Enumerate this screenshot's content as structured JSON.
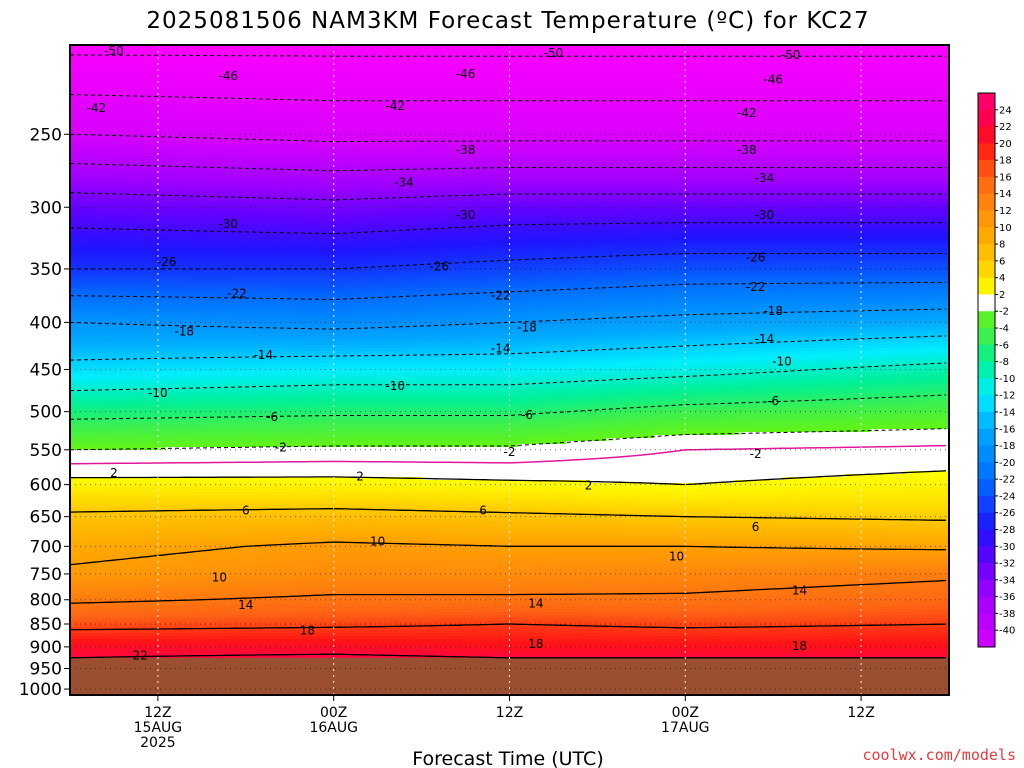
{
  "chart_data": {
    "type": "heatmap",
    "title": "2025081506 NAM3KM Forecast Temperature (ºC) for KC27",
    "xlabel": "Forecast Time (UTC)",
    "ylabel": "",
    "y_axis": {
      "scale": "log",
      "inverted": true,
      "range": [
        1015,
        200
      ],
      "ticks": [
        "250",
        "300",
        "350",
        "400",
        "450",
        "500",
        "550",
        "600",
        "650",
        "700",
        "750",
        "800",
        "850",
        "900",
        "950",
        "1000"
      ]
    },
    "x_axis": {
      "range": [
        "2025-08-15 06Z",
        "2025-08-17 18Z"
      ],
      "ticks": [
        {
          "lines": [
            "12Z",
            "15AUG",
            "2025"
          ]
        },
        {
          "lines": [
            "00Z",
            "16AUG"
          ]
        },
        {
          "lines": [
            "12Z"
          ]
        },
        {
          "lines": [
            "00Z",
            "17AUG"
          ]
        },
        {
          "lines": [
            "12Z"
          ]
        }
      ]
    },
    "surface_pressure_hpa": 925,
    "colorbar": {
      "labels": [
        "24",
        "22",
        "20",
        "18",
        "16",
        "14",
        "12",
        "10",
        "8",
        "6",
        "4",
        "2",
        "-2",
        "-4",
        "-6",
        "-8",
        "-10",
        "-12",
        "-14",
        "-16",
        "-18",
        "-20",
        "-22",
        "-24",
        "-26",
        "-28",
        "-30",
        "-32",
        "-34",
        "-36",
        "-38",
        "-40"
      ]
    },
    "profiles": [
      {
        "time": "2025-08-15 06Z",
        "levels": [
          {
            "p": 200,
            "t": -51
          },
          {
            "p": 250,
            "t": -42
          },
          {
            "p": 300,
            "t": -32
          },
          {
            "p": 350,
            "t": -26
          },
          {
            "p": 400,
            "t": -18
          },
          {
            "p": 450,
            "t": -13
          },
          {
            "p": 500,
            "t": -7
          },
          {
            "p": 550,
            "t": -2
          },
          {
            "p": 600,
            "t": 3
          },
          {
            "p": 650,
            "t": 6.5
          },
          {
            "p": 700,
            "t": 9
          },
          {
            "p": 750,
            "t": 10.5
          },
          {
            "p": 800,
            "t": 13.5
          },
          {
            "p": 850,
            "t": 17
          },
          {
            "p": 900,
            "t": 21
          },
          {
            "p": 925,
            "t": 22
          }
        ]
      },
      {
        "time": "2025-08-16 00Z",
        "levels": [
          {
            "p": 200,
            "t": -51
          },
          {
            "p": 250,
            "t": -43
          },
          {
            "p": 300,
            "t": -33
          },
          {
            "p": 350,
            "t": -26
          },
          {
            "p": 400,
            "t": -19
          },
          {
            "p": 450,
            "t": -12
          },
          {
            "p": 500,
            "t": -6.5
          },
          {
            "p": 550,
            "t": -1.5
          },
          {
            "p": 600,
            "t": 3
          },
          {
            "p": 650,
            "t": 7
          },
          {
            "p": 700,
            "t": 10.5
          },
          {
            "p": 750,
            "t": 12
          },
          {
            "p": 800,
            "t": 14.5
          },
          {
            "p": 850,
            "t": 17.5
          },
          {
            "p": 900,
            "t": 21
          },
          {
            "p": 925,
            "t": 22.5
          }
        ]
      },
      {
        "time": "2025-08-16 12Z",
        "levels": [
          {
            "p": 200,
            "t": -51
          },
          {
            "p": 250,
            "t": -43
          },
          {
            "p": 300,
            "t": -32
          },
          {
            "p": 350,
            "t": -25
          },
          {
            "p": 400,
            "t": -18
          },
          {
            "p": 450,
            "t": -12
          },
          {
            "p": 500,
            "t": -6.5
          },
          {
            "p": 550,
            "t": -1.5
          },
          {
            "p": 600,
            "t": 2.5
          },
          {
            "p": 650,
            "t": 6.5
          },
          {
            "p": 700,
            "t": 10
          },
          {
            "p": 750,
            "t": 12
          },
          {
            "p": 800,
            "t": 14.5
          },
          {
            "p": 850,
            "t": 18
          },
          {
            "p": 900,
            "t": 20.5
          },
          {
            "p": 925,
            "t": 22
          }
        ]
      },
      {
        "time": "2025-08-17 00Z",
        "levels": [
          {
            "p": 200,
            "t": -51
          },
          {
            "p": 250,
            "t": -43
          },
          {
            "p": 300,
            "t": -32
          },
          {
            "p": 350,
            "t": -24
          },
          {
            "p": 400,
            "t": -17
          },
          {
            "p": 450,
            "t": -11
          },
          {
            "p": 500,
            "t": -5
          },
          {
            "p": 550,
            "t": 0
          },
          {
            "p": 600,
            "t": 2
          },
          {
            "p": 650,
            "t": 6
          },
          {
            "p": 700,
            "t": 10
          },
          {
            "p": 750,
            "t": 12.5
          },
          {
            "p": 800,
            "t": 14.5
          },
          {
            "p": 850,
            "t": 17.5
          },
          {
            "p": 900,
            "t": 20.5
          },
          {
            "p": 925,
            "t": 22
          }
        ]
      },
      {
        "time": "2025-08-17 18Z",
        "levels": [
          {
            "p": 200,
            "t": -51
          },
          {
            "p": 250,
            "t": -43
          },
          {
            "p": 300,
            "t": -32
          },
          {
            "p": 350,
            "t": -24
          },
          {
            "p": 400,
            "t": -16
          },
          {
            "p": 450,
            "t": -9
          },
          {
            "p": 500,
            "t": -4
          },
          {
            "p": 550,
            "t": 0.5
          },
          {
            "p": 600,
            "t": 3
          },
          {
            "p": 650,
            "t": 5.5
          },
          {
            "p": 700,
            "t": 9.5
          },
          {
            "p": 750,
            "t": 13.5
          },
          {
            "p": 800,
            "t": 15.5
          },
          {
            "p": 850,
            "t": 18
          },
          {
            "p": 900,
            "t": 20.5
          },
          {
            "p": 925,
            "t": 22
          }
        ]
      }
    ],
    "contour_labels": [
      {
        "label": "-50",
        "t": 0.05,
        "p": 203
      },
      {
        "label": "-50",
        "t": 0.55,
        "p": 204
      },
      {
        "label": "-50",
        "t": 0.82,
        "p": 205
      },
      {
        "label": "-46",
        "t": 0.18,
        "p": 216
      },
      {
        "label": "-46",
        "t": 0.45,
        "p": 215
      },
      {
        "label": "-46",
        "t": 0.8,
        "p": 218
      },
      {
        "label": "-42",
        "t": 0.03,
        "p": 234
      },
      {
        "label": "-42",
        "t": 0.37,
        "p": 233
      },
      {
        "label": "-42",
        "t": 0.77,
        "p": 237
      },
      {
        "label": "-38",
        "t": 0.45,
        "p": 260
      },
      {
        "label": "-38",
        "t": 0.77,
        "p": 260
      },
      {
        "label": "-34",
        "t": 0.38,
        "p": 282
      },
      {
        "label": "-34",
        "t": 0.79,
        "p": 279
      },
      {
        "label": "-30",
        "t": 0.18,
        "p": 313
      },
      {
        "label": "-30",
        "t": 0.45,
        "p": 306
      },
      {
        "label": "-30",
        "t": 0.79,
        "p": 306
      },
      {
        "label": "-26",
        "t": 0.11,
        "p": 344
      },
      {
        "label": "-26",
        "t": 0.42,
        "p": 348
      },
      {
        "label": "-26",
        "t": 0.78,
        "p": 340
      },
      {
        "label": "-22",
        "t": 0.19,
        "p": 372
      },
      {
        "label": "-22",
        "t": 0.49,
        "p": 374
      },
      {
        "label": "-22",
        "t": 0.78,
        "p": 366
      },
      {
        "label": "-18",
        "t": 0.13,
        "p": 409
      },
      {
        "label": "-18",
        "t": 0.52,
        "p": 405
      },
      {
        "label": "-18",
        "t": 0.8,
        "p": 389
      },
      {
        "label": "-14",
        "t": 0.22,
        "p": 434
      },
      {
        "label": "-14",
        "t": 0.49,
        "p": 427
      },
      {
        "label": "-14",
        "t": 0.79,
        "p": 417
      },
      {
        "label": "-10",
        "t": 0.1,
        "p": 477
      },
      {
        "label": "-10",
        "t": 0.37,
        "p": 469
      },
      {
        "label": "-10",
        "t": 0.81,
        "p": 441
      },
      {
        "label": "-6",
        "t": 0.23,
        "p": 507
      },
      {
        "label": "-6",
        "t": 0.52,
        "p": 504
      },
      {
        "label": "-6",
        "t": 0.8,
        "p": 487
      },
      {
        "label": "-2",
        "t": 0.24,
        "p": 547
      },
      {
        "label": "-2",
        "t": 0.5,
        "p": 553
      },
      {
        "label": "-2",
        "t": 0.78,
        "p": 556
      },
      {
        "label": "2",
        "t": 0.05,
        "p": 583
      },
      {
        "label": "2",
        "t": 0.33,
        "p": 588
      },
      {
        "label": "2",
        "t": 0.59,
        "p": 601
      },
      {
        "label": "6",
        "t": 0.2,
        "p": 640
      },
      {
        "label": "6",
        "t": 0.47,
        "p": 640
      },
      {
        "label": "6",
        "t": 0.78,
        "p": 667
      },
      {
        "label": "10",
        "t": 0.17,
        "p": 757
      },
      {
        "label": "10",
        "t": 0.35,
        "p": 692
      },
      {
        "label": "10",
        "t": 0.69,
        "p": 718
      },
      {
        "label": "14",
        "t": 0.2,
        "p": 811
      },
      {
        "label": "14",
        "t": 0.53,
        "p": 808
      },
      {
        "label": "14",
        "t": 0.83,
        "p": 782
      },
      {
        "label": "18",
        "t": 0.27,
        "p": 864
      },
      {
        "label": "18",
        "t": 0.53,
        "p": 894
      },
      {
        "label": "18",
        "t": 0.83,
        "p": 898
      },
      {
        "label": "22",
        "t": 0.08,
        "p": 920
      }
    ],
    "grid": "dotted",
    "legend": "right colorbar"
  },
  "credit": "coolwx.com/models"
}
